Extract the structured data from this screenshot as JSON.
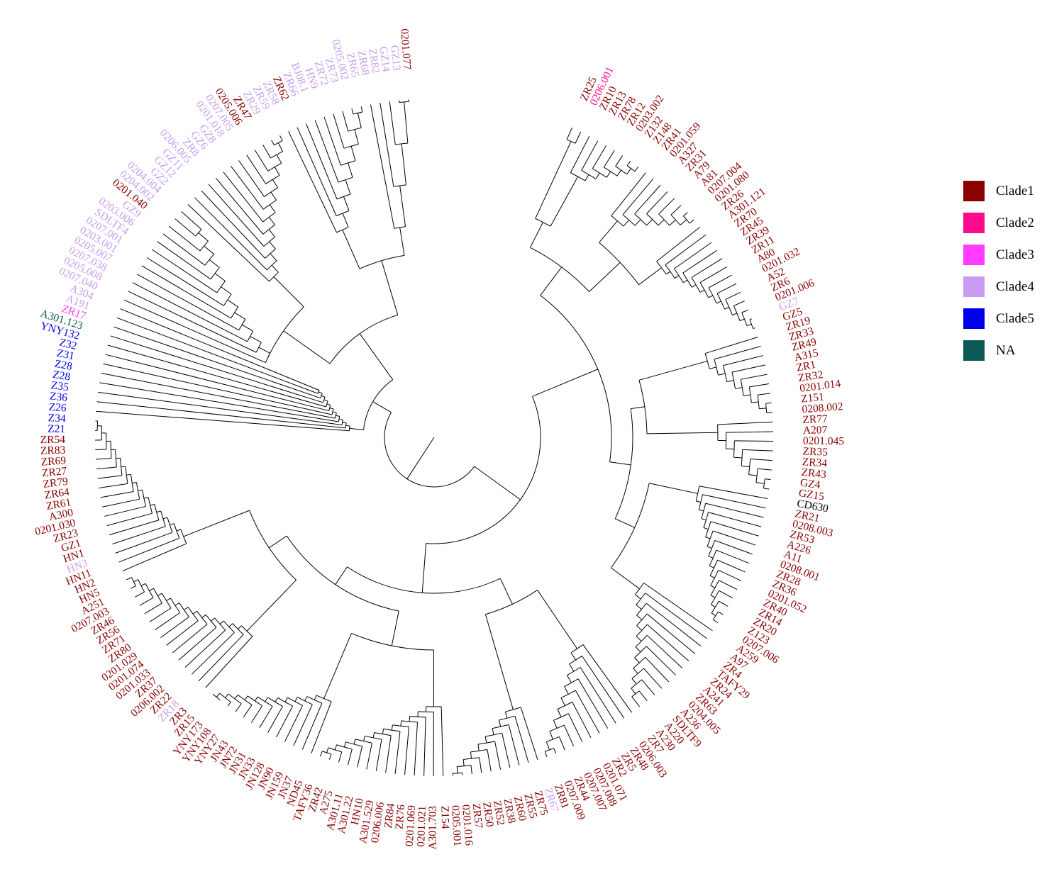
{
  "diagram": {
    "title": "",
    "type": "circular-phylogenetic-tree"
  },
  "legend": [
    {
      "label": "Clade1",
      "color": "#8b0000"
    },
    {
      "label": "Clade2",
      "color": "#ff0a8c"
    },
    {
      "label": "Clade3",
      "color": "#ff3cff"
    },
    {
      "label": "Clade4",
      "color": "#c99cf2"
    },
    {
      "label": "Clade5",
      "color": "#0000ee"
    },
    {
      "label": "NA",
      "color": "#0b5a56"
    }
  ],
  "colors": {
    "C1": "#8b0000",
    "C2": "#ff0a8c",
    "C3": "#ff3cff",
    "C4": "#c99cf2",
    "C5": "#0000ee",
    "NA": "#0b5a56",
    "black": "#000000"
  },
  "leaves": [
    {
      "label": "ZR25",
      "clade": "C1"
    },
    {
      "label": "0206.001",
      "clade": "C2"
    },
    {
      "label": "ZR10",
      "clade": "C1"
    },
    {
      "label": "ZR13",
      "clade": "C1"
    },
    {
      "label": "ZR78",
      "clade": "C1"
    },
    {
      "label": "ZR12",
      "clade": "C1"
    },
    {
      "label": "0203.002",
      "clade": "C1"
    },
    {
      "label": "Z132",
      "clade": "C1"
    },
    {
      "label": "Z148",
      "clade": "C1"
    },
    {
      "label": "ZR41",
      "clade": "C1"
    },
    {
      "label": "0201.059",
      "clade": "C1"
    },
    {
      "label": "A327",
      "clade": "C1"
    },
    {
      "label": "ZR31",
      "clade": "C1"
    },
    {
      "label": "A79",
      "clade": "C1"
    },
    {
      "label": "A81",
      "clade": "C1"
    },
    {
      "label": "0207.004",
      "clade": "C1"
    },
    {
      "label": "0201.080",
      "clade": "C1"
    },
    {
      "label": "ZR26",
      "clade": "C1"
    },
    {
      "label": "A301.121",
      "clade": "C1"
    },
    {
      "label": "ZR70",
      "clade": "C1"
    },
    {
      "label": "ZR45",
      "clade": "C1"
    },
    {
      "label": "ZR39",
      "clade": "C1"
    },
    {
      "label": "ZR11",
      "clade": "C1"
    },
    {
      "label": "A80",
      "clade": "C1"
    },
    {
      "label": "0201.032",
      "clade": "C1"
    },
    {
      "label": "A52",
      "clade": "C1"
    },
    {
      "label": "ZR6",
      "clade": "C1"
    },
    {
      "label": "0201.006",
      "clade": "C1"
    },
    {
      "label": "GZ7",
      "clade": "C4"
    },
    {
      "label": "GZ5",
      "clade": "C1"
    },
    {
      "label": "ZR19",
      "clade": "C1"
    },
    {
      "label": "ZR33",
      "clade": "C1"
    },
    {
      "label": "ZR49",
      "clade": "C1"
    },
    {
      "label": "A315",
      "clade": "C1"
    },
    {
      "label": "ZR1",
      "clade": "C1"
    },
    {
      "label": "ZR32",
      "clade": "C1"
    },
    {
      "label": "0201.014",
      "clade": "C1"
    },
    {
      "label": "Z151",
      "clade": "C1"
    },
    {
      "label": "0208.002",
      "clade": "C1"
    },
    {
      "label": "ZR77",
      "clade": "C1"
    },
    {
      "label": "A207",
      "clade": "C1"
    },
    {
      "label": "0201.045",
      "clade": "C1"
    },
    {
      "label": "ZR35",
      "clade": "C1"
    },
    {
      "label": "ZR34",
      "clade": "C1"
    },
    {
      "label": "ZR43",
      "clade": "C1"
    },
    {
      "label": "GZ4",
      "clade": "C1"
    },
    {
      "label": "GZ15",
      "clade": "C1"
    },
    {
      "label": "CD630",
      "clade": "black"
    },
    {
      "label": "ZR21",
      "clade": "C1"
    },
    {
      "label": "0208.003",
      "clade": "C1"
    },
    {
      "label": "ZR53",
      "clade": "C1"
    },
    {
      "label": "A226",
      "clade": "C1"
    },
    {
      "label": "A11",
      "clade": "C1"
    },
    {
      "label": "0208.001",
      "clade": "C1"
    },
    {
      "label": "ZR28",
      "clade": "C1"
    },
    {
      "label": "ZR36",
      "clade": "C1"
    },
    {
      "label": "0201.052",
      "clade": "C1"
    },
    {
      "label": "ZR40",
      "clade": "C1"
    },
    {
      "label": "ZR14",
      "clade": "C1"
    },
    {
      "label": "ZR20",
      "clade": "C1"
    },
    {
      "label": "Z123",
      "clade": "C1"
    },
    {
      "label": "0207.006",
      "clade": "C1"
    },
    {
      "label": "A259",
      "clade": "C1"
    },
    {
      "label": "A97",
      "clade": "C1"
    },
    {
      "label": "ZR4",
      "clade": "C1"
    },
    {
      "label": "TAFY29",
      "clade": "C1"
    },
    {
      "label": "ZR24",
      "clade": "C1"
    },
    {
      "label": "A241",
      "clade": "C1"
    },
    {
      "label": "ZR63",
      "clade": "C1"
    },
    {
      "label": "0204.005",
      "clade": "C1"
    },
    {
      "label": "A236",
      "clade": "C1"
    },
    {
      "label": "SDLTF9",
      "clade": "C1"
    },
    {
      "label": "A220",
      "clade": "C1"
    },
    {
      "label": "A230",
      "clade": "C1"
    },
    {
      "label": "ZR7",
      "clade": "C1"
    },
    {
      "label": "0206.003",
      "clade": "C1"
    },
    {
      "label": "ZR48",
      "clade": "C1"
    },
    {
      "label": "ZR5",
      "clade": "C1"
    },
    {
      "label": "ZR2",
      "clade": "C1"
    },
    {
      "label": "0201.071",
      "clade": "C1"
    },
    {
      "label": "0207.008",
      "clade": "C1"
    },
    {
      "label": "0207.007",
      "clade": "C1"
    },
    {
      "label": "ZR44",
      "clade": "C1"
    },
    {
      "label": "0207.009",
      "clade": "C1"
    },
    {
      "label": "ZR81",
      "clade": "C1"
    },
    {
      "label": "ZR67",
      "clade": "C4"
    },
    {
      "label": "ZR75",
      "clade": "C1"
    },
    {
      "label": "ZR55",
      "clade": "C1"
    },
    {
      "label": "ZR60",
      "clade": "C1"
    },
    {
      "label": "ZR38",
      "clade": "C1"
    },
    {
      "label": "ZR52",
      "clade": "C1"
    },
    {
      "label": "ZR50",
      "clade": "C1"
    },
    {
      "label": "ZR57",
      "clade": "C1"
    },
    {
      "label": "0201.016",
      "clade": "C1"
    },
    {
      "label": "0205.001",
      "clade": "C1"
    },
    {
      "label": "Z154",
      "clade": "C1"
    },
    {
      "label": "A301.703",
      "clade": "C1"
    },
    {
      "label": "0201.021",
      "clade": "C1"
    },
    {
      "label": "0201.069",
      "clade": "C1"
    },
    {
      "label": "ZR76",
      "clade": "C1"
    },
    {
      "label": "ZR84",
      "clade": "C1"
    },
    {
      "label": "0206.006",
      "clade": "C1"
    },
    {
      "label": "A301.529",
      "clade": "C1"
    },
    {
      "label": "HN10",
      "clade": "C1"
    },
    {
      "label": "A301.22",
      "clade": "C1"
    },
    {
      "label": "A301.11",
      "clade": "C1"
    },
    {
      "label": "A275",
      "clade": "C1"
    },
    {
      "label": "ZR42",
      "clade": "C1"
    },
    {
      "label": "TAFY36",
      "clade": "C1"
    },
    {
      "label": "ND45",
      "clade": "C1"
    },
    {
      "label": "JN37",
      "clade": "C1"
    },
    {
      "label": "JN159",
      "clade": "C1"
    },
    {
      "label": "JN90",
      "clade": "C1"
    },
    {
      "label": "JN128",
      "clade": "C1"
    },
    {
      "label": "JN33",
      "clade": "C1"
    },
    {
      "label": "JN31",
      "clade": "C1"
    },
    {
      "label": "JN72",
      "clade": "C1"
    },
    {
      "label": "JN43",
      "clade": "C1"
    },
    {
      "label": "YNY27",
      "clade": "C1"
    },
    {
      "label": "YNY108",
      "clade": "C1"
    },
    {
      "label": "YNY173",
      "clade": "C1"
    },
    {
      "label": "ZR15",
      "clade": "C1"
    },
    {
      "label": "ZR3",
      "clade": "C1"
    },
    {
      "label": "ZR18",
      "clade": "C4"
    },
    {
      "label": "ZR22",
      "clade": "C1"
    },
    {
      "label": "0206.002",
      "clade": "C1"
    },
    {
      "label": "ZR37",
      "clade": "C1"
    },
    {
      "label": "0201.033",
      "clade": "C1"
    },
    {
      "label": "0201.074",
      "clade": "C1"
    },
    {
      "label": "0201.029",
      "clade": "C1"
    },
    {
      "label": "ZR80",
      "clade": "C1"
    },
    {
      "label": "ZR71",
      "clade": "C1"
    },
    {
      "label": "ZR56",
      "clade": "C1"
    },
    {
      "label": "ZR46",
      "clade": "C1"
    },
    {
      "label": "0207.003",
      "clade": "C1"
    },
    {
      "label": "A251",
      "clade": "C1"
    },
    {
      "label": "HN5",
      "clade": "C1"
    },
    {
      "label": "HN2",
      "clade": "C1"
    },
    {
      "label": "HN11",
      "clade": "C1"
    },
    {
      "label": "HN3",
      "clade": "C4"
    },
    {
      "label": "HN1",
      "clade": "C1"
    },
    {
      "label": "GZ1",
      "clade": "C1"
    },
    {
      "label": "ZR23",
      "clade": "C1"
    },
    {
      "label": "0201.030",
      "clade": "C1"
    },
    {
      "label": "A300",
      "clade": "C1"
    },
    {
      "label": "ZR61",
      "clade": "C1"
    },
    {
      "label": "ZR64",
      "clade": "C1"
    },
    {
      "label": "ZR79",
      "clade": "C1"
    },
    {
      "label": "ZR27",
      "clade": "C1"
    },
    {
      "label": "ZR69",
      "clade": "C1"
    },
    {
      "label": "ZR83",
      "clade": "C1"
    },
    {
      "label": "ZR54",
      "clade": "C1"
    },
    {
      "label": "Z21",
      "clade": "C5"
    },
    {
      "label": "Z34",
      "clade": "C5"
    },
    {
      "label": "Z26",
      "clade": "C5"
    },
    {
      "label": "Z36",
      "clade": "C5"
    },
    {
      "label": "Z35",
      "clade": "C5"
    },
    {
      "label": "Z28",
      "clade": "C5"
    },
    {
      "label": "Z28",
      "clade": "C5"
    },
    {
      "label": "Z31",
      "clade": "C5"
    },
    {
      "label": "Z32",
      "clade": "C5"
    },
    {
      "label": "YNY132",
      "clade": "C5"
    },
    {
      "label": "A301.123",
      "clade": "NA"
    },
    {
      "label": "ZR17",
      "clade": "C3"
    },
    {
      "label": "A191",
      "clade": "C4"
    },
    {
      "label": "A304",
      "clade": "C4"
    },
    {
      "label": "0207.040",
      "clade": "C4"
    },
    {
      "label": "0205.008",
      "clade": "C4"
    },
    {
      "label": "0207.038",
      "clade": "C4"
    },
    {
      "label": "0205.007",
      "clade": "C4"
    },
    {
      "label": "0203.001",
      "clade": "C4"
    },
    {
      "label": "0207.001",
      "clade": "C4"
    },
    {
      "label": "SDLTF4",
      "clade": "C4"
    },
    {
      "label": "0203.006",
      "clade": "C4"
    },
    {
      "label": "GZ9",
      "clade": "C4"
    },
    {
      "label": "0201.040",
      "clade": "C1"
    },
    {
      "label": "0204.002",
      "clade": "C4"
    },
    {
      "label": "0204.004",
      "clade": "C4"
    },
    {
      "label": "GZ2",
      "clade": "C4"
    },
    {
      "label": "GZ12",
      "clade": "C4"
    },
    {
      "label": "GZ11",
      "clade": "C4"
    },
    {
      "label": "0206.005",
      "clade": "C4"
    },
    {
      "label": "ZR8",
      "clade": "C4"
    },
    {
      "label": "GZ6",
      "clade": "C4"
    },
    {
      "label": "GZ8",
      "clade": "C4"
    },
    {
      "label": "0201.018",
      "clade": "C4"
    },
    {
      "label": "0207.005",
      "clade": "C4"
    },
    {
      "label": "0205.006",
      "clade": "C1"
    },
    {
      "label": "ZR47",
      "clade": "C1"
    },
    {
      "label": "ZR29",
      "clade": "C4"
    },
    {
      "label": "ZR59",
      "clade": "C4"
    },
    {
      "label": "ZR58",
      "clade": "C4"
    },
    {
      "label": "ZR62",
      "clade": "C1"
    },
    {
      "label": "ZR66",
      "clade": "C4"
    },
    {
      "label": "BJ08.1",
      "clade": "C4"
    },
    {
      "label": "HN9",
      "clade": "C4"
    },
    {
      "label": "ZR72",
      "clade": "C4"
    },
    {
      "label": "ZR73",
      "clade": "C4"
    },
    {
      "label": "0205.002",
      "clade": "C4"
    },
    {
      "label": "ZR65",
      "clade": "C4"
    },
    {
      "label": "ZR68",
      "clade": "C4"
    },
    {
      "label": "ZR82",
      "clade": "C4"
    },
    {
      "label": "GZ14",
      "clade": "C4"
    },
    {
      "label": "GZ13",
      "clade": "C4"
    },
    {
      "label": "0201.077",
      "clade": "C1"
    }
  ]
}
